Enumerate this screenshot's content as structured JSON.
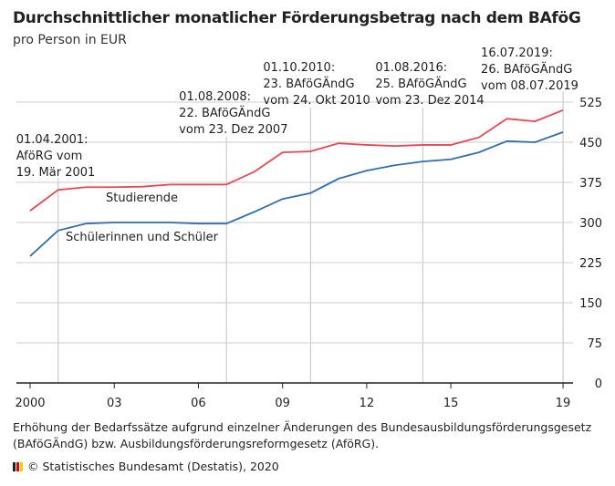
{
  "chart_data": {
    "type": "line",
    "title": "Durchschnittlicher monatlicher Förderungsbetrag nach dem BAföG",
    "subtitle": "pro Person in EUR",
    "x": [
      2000,
      2001,
      2002,
      2003,
      2004,
      2005,
      2006,
      2007,
      2008,
      2009,
      2010,
      2011,
      2012,
      2013,
      2014,
      2015,
      2016,
      2017,
      2018,
      2019
    ],
    "xticks": [
      {
        "v": 2000,
        "label": "2000"
      },
      {
        "v": 2003,
        "label": "03"
      },
      {
        "v": 2006,
        "label": "06"
      },
      {
        "v": 2009,
        "label": "09"
      },
      {
        "v": 2012,
        "label": "12"
      },
      {
        "v": 2015,
        "label": "15"
      },
      {
        "v": 2019,
        "label": "19"
      }
    ],
    "yticks": [
      0,
      75,
      150,
      225,
      300,
      375,
      450,
      525
    ],
    "ylim": [
      0,
      525
    ],
    "grid": true,
    "series": [
      {
        "name": "Studierende",
        "color": "#f0434f",
        "values": [
          322,
          361,
          366,
          366,
          367,
          371,
          371,
          371,
          395,
          431,
          433,
          448,
          445,
          443,
          445,
          445,
          459,
          494,
          489,
          510
        ]
      },
      {
        "name": "Schülerinnen und Schüler",
        "color": "#2f6fb7",
        "values": [
          237,
          285,
          298,
          300,
          300,
          300,
          298,
          298,
          320,
          344,
          355,
          382,
          397,
          407,
          414,
          418,
          431,
          452,
          450,
          469
        ]
      }
    ],
    "annotations": [
      {
        "x": 2001,
        "lines": [
          "01.04.2001:",
          "AföRG vom",
          "19. Mär 2001"
        ]
      },
      {
        "x": 2007,
        "lines": [
          "01.08.2008:",
          "22. BAföGÄndG",
          "vom 23. Dez 2007"
        ]
      },
      {
        "x": 2010,
        "lines": [
          "01.10.2010:",
          "23. BAföGÄndG",
          "vom 24. Okt 2010"
        ]
      },
      {
        "x": 2014,
        "lines": [
          "01.08.2016:",
          "25. BAföGÄndG",
          "vom 23. Dez 2014"
        ]
      },
      {
        "x": 2019,
        "lines": [
          "16.07.2019:",
          "26. BAföGÄndG",
          "vom 08.07.2019"
        ]
      }
    ],
    "footnote": "Erhöhung der Bedarfssätze aufgrund einzelner Änderungen des Bundesausbildungsförderungsgesetz (BAföGÄndG) bzw. Ausbildungsförderungsreformgesetz (AföRG).",
    "source": "© Statistisches Bundesamt (Destatis), 2020"
  }
}
